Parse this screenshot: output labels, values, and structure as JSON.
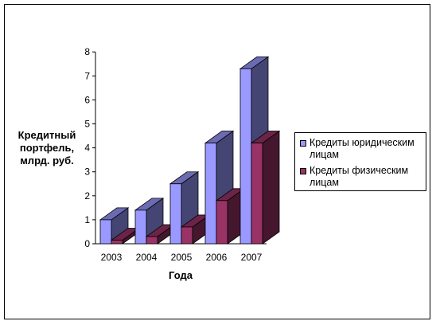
{
  "chart_data": {
    "type": "bar",
    "categories": [
      "2003",
      "2004",
      "2005",
      "2006",
      "2007"
    ],
    "series": [
      {
        "name": "Кредиты юридическим лицам",
        "values": [
          1.0,
          1.4,
          2.5,
          4.2,
          7.3
        ],
        "color": "#9999ff"
      },
      {
        "name": "Кредиты физическим лицам",
        "values": [
          0.15,
          0.3,
          0.7,
          1.8,
          4.2
        ],
        "color": "#993366"
      }
    ],
    "xlabel": "Года",
    "ylabel": [
      "Кредитный",
      "портфель,",
      "млрд. руб."
    ],
    "ylim": [
      0,
      8
    ],
    "yticks": [
      "0",
      "1",
      "2",
      "3",
      "4",
      "5",
      "6",
      "7",
      "8"
    ],
    "legend_position": "right",
    "grid": false,
    "three_d": true
  }
}
